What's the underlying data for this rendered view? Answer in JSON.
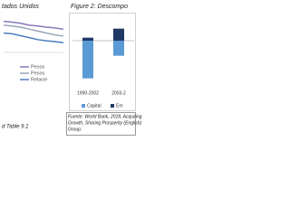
{
  "left_figure": {
    "title": "tados Unidos",
    "chart_data": {
      "type": "line",
      "categories": [
        null,
        null,
        null,
        null,
        null,
        null,
        null,
        null
      ],
      "series": [
        {
          "name": "Pesos",
          "color": "#8a78b8",
          "values": [
            8,
            7.8,
            7.5,
            7,
            6.8,
            6.5,
            6.3,
            6
          ]
        },
        {
          "name": "Pesos",
          "color": "#9aa6b8",
          "values": [
            7,
            6.8,
            6.5,
            6,
            5.5,
            5,
            4.5,
            4.2
          ]
        },
        {
          "name": "Relacie",
          "color": "#4a7fc1",
          "values": [
            5,
            4.8,
            4.3,
            3.8,
            3.3,
            3,
            2.8,
            2.5
          ]
        }
      ],
      "ylim": [
        0,
        10
      ]
    },
    "note": "d Table 9.1"
  },
  "right_figure": {
    "title": "Figure 2: Descompo",
    "chart_data": {
      "type": "bar",
      "categories": [
        "1990-2002",
        "2003-2"
      ],
      "series": [
        {
          "name": "Capital",
          "color": "#5b9bd5",
          "values": [
            -5,
            -2
          ]
        },
        {
          "name": "Em",
          "color": "#1f3864",
          "values": [
            0.4,
            1.6
          ]
        }
      ],
      "ylim": [
        -6,
        3
      ]
    },
    "source": [
      "Fuente: World Bank, 2018, Acquiring",
      "Growth, Sharing Prosperity (English)",
      "Group."
    ]
  }
}
